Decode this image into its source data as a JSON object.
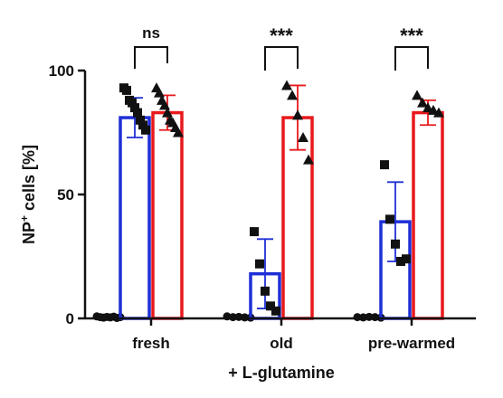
{
  "chart_data": {
    "type": "bar",
    "ylabel": "NP",
    "ylabel_sup": "+",
    "ylabel_suffix": " cells [%]",
    "xlabel": "+ L-glutamine",
    "ylim": [
      0,
      100
    ],
    "yticks": [
      "0",
      "50",
      "100"
    ],
    "ytick_values": [
      0,
      50,
      100
    ],
    "categories": [
      "fresh",
      "old",
      "pre-warmed"
    ],
    "colors": {
      "blue": "#1f2fd6",
      "red": "#e8191c",
      "points": "#111111"
    },
    "series": [
      {
        "color": "#111111",
        "marker": "circle",
        "outline": false,
        "values": [
          0.5,
          0.5,
          0.5
        ],
        "errors": [
          0,
          0,
          0
        ],
        "points": [
          [
            0.8,
            0.5,
            0.3,
            0.6,
            0.4,
            0.7,
            0.2,
            0.5
          ],
          [
            0.8,
            0.5,
            0.6,
            0.4,
            0.3
          ],
          [
            0.5,
            0.4,
            0.6,
            0.5,
            0.3
          ]
        ]
      },
      {
        "color": "#1f2fd6",
        "marker": "square",
        "outline": true,
        "values": [
          81,
          18,
          39
        ],
        "errors": [
          8,
          14,
          16
        ],
        "points": [
          [
            93,
            92,
            88,
            87,
            85,
            83,
            80,
            78,
            76
          ],
          [
            35,
            22,
            11,
            5,
            3
          ],
          [
            62,
            40,
            30,
            23,
            24
          ]
        ]
      },
      {
        "color": "#e8191c",
        "marker": "triangle",
        "outline": true,
        "values": [
          83,
          81,
          83
        ],
        "errors": [
          7,
          13,
          5
        ],
        "points": [
          [
            93,
            91,
            88,
            86,
            83,
            80,
            79,
            77,
            75
          ],
          [
            94,
            90,
            82,
            73,
            64
          ],
          [
            90,
            87,
            85,
            84,
            83
          ]
        ]
      }
    ],
    "significance": [
      {
        "category": "fresh",
        "label": "ns"
      },
      {
        "category": "old",
        "label": "***"
      },
      {
        "category": "pre-warmed",
        "label": "***"
      }
    ]
  }
}
